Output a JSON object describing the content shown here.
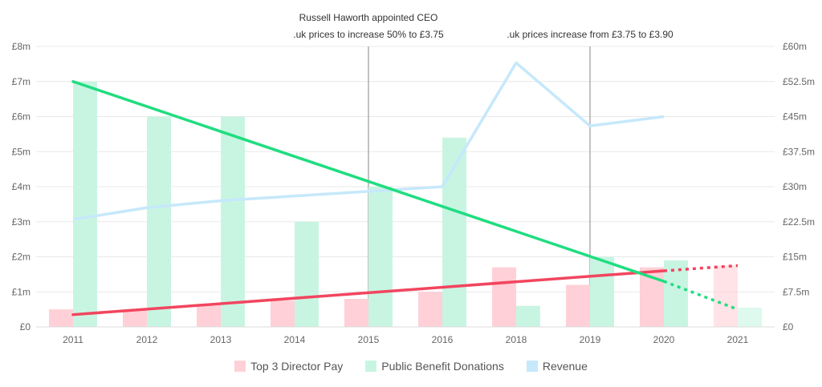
{
  "chart_data": {
    "type": "bar",
    "categories": [
      "2011",
      "2012",
      "2013",
      "2014",
      "2015",
      "2016",
      "2018",
      "2019",
      "2020",
      "2021"
    ],
    "series": [
      {
        "name": "Top 3 Director Pay",
        "kind": "bar",
        "axis": "left",
        "color": "#ffd0d7",
        "values": [
          0.5,
          0.5,
          0.65,
          0.75,
          0.8,
          1.0,
          1.7,
          1.2,
          1.7,
          1.75
        ]
      },
      {
        "name": "Public Benefit Donations",
        "kind": "bar",
        "axis": "left",
        "color": "#c8f5e2",
        "values": [
          7.0,
          6.0,
          6.0,
          3.0,
          4.0,
          5.4,
          0.6,
          2.0,
          1.9,
          0.55
        ]
      },
      {
        "name": "Revenue",
        "kind": "line",
        "axis": "right",
        "color": "#c6e8fb",
        "values": [
          23.0,
          25.5,
          27.0,
          28.0,
          29.0,
          30.0,
          56.5,
          43.0,
          45.0,
          null
        ]
      }
    ],
    "trendlines": [
      {
        "series": "Top 3 Director Pay",
        "color": "#f2455f",
        "solid": [
          0,
          0.35,
          8,
          1.6
        ],
        "dotted_to": [
          9,
          1.75
        ]
      },
      {
        "series": "Public Benefit Donations",
        "color": "#20dd80",
        "solid": [
          0,
          7.0,
          8,
          1.3
        ],
        "dotted_to": [
          9,
          0.5
        ]
      }
    ],
    "y_left": {
      "min": 0,
      "max": 8,
      "ticks": [
        "£0",
        "£1m",
        "£2m",
        "£3m",
        "£4m",
        "£5m",
        "£6m",
        "£7m",
        "£8m"
      ]
    },
    "y_right": {
      "min": 0,
      "max": 60,
      "ticks": [
        "£0",
        "£7.5m",
        "£15m",
        "£22.5m",
        "£30m",
        "£37.5m",
        "£45m",
        "£52.5m",
        "£60m"
      ]
    },
    "annotations": [
      {
        "at_category": 4,
        "lines": [
          "Russell Haworth appointed CEO",
          ".uk prices to increase 50% to £3.75"
        ]
      },
      {
        "at_category": 7,
        "lines": [
          ".uk prices increase from £3.75 to £3.90"
        ]
      }
    ],
    "grid": true,
    "legend_position": "bottom"
  }
}
